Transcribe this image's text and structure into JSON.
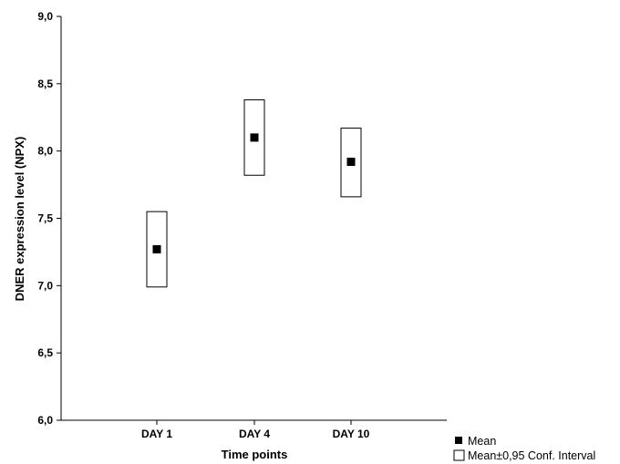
{
  "chart_data": {
    "type": "scatter",
    "title": "",
    "xlabel": "Time points",
    "ylabel": "DNER expression level (NPX)",
    "categories": [
      "DAY 1",
      "DAY 4",
      "DAY 10"
    ],
    "ylim": [
      6.0,
      9.0
    ],
    "yticks": [
      "6,0",
      "6,5",
      "7,0",
      "7,5",
      "8,0",
      "8,5",
      "9,0"
    ],
    "series": [
      {
        "name": "Mean",
        "values": [
          7.27,
          8.1,
          7.92
        ]
      },
      {
        "name": "Mean±0,95 Conf. Interval",
        "lower": [
          6.99,
          7.82,
          7.66
        ],
        "upper": [
          7.55,
          8.38,
          8.17
        ]
      }
    ],
    "legend_position": "bottom-right",
    "grid": false
  }
}
